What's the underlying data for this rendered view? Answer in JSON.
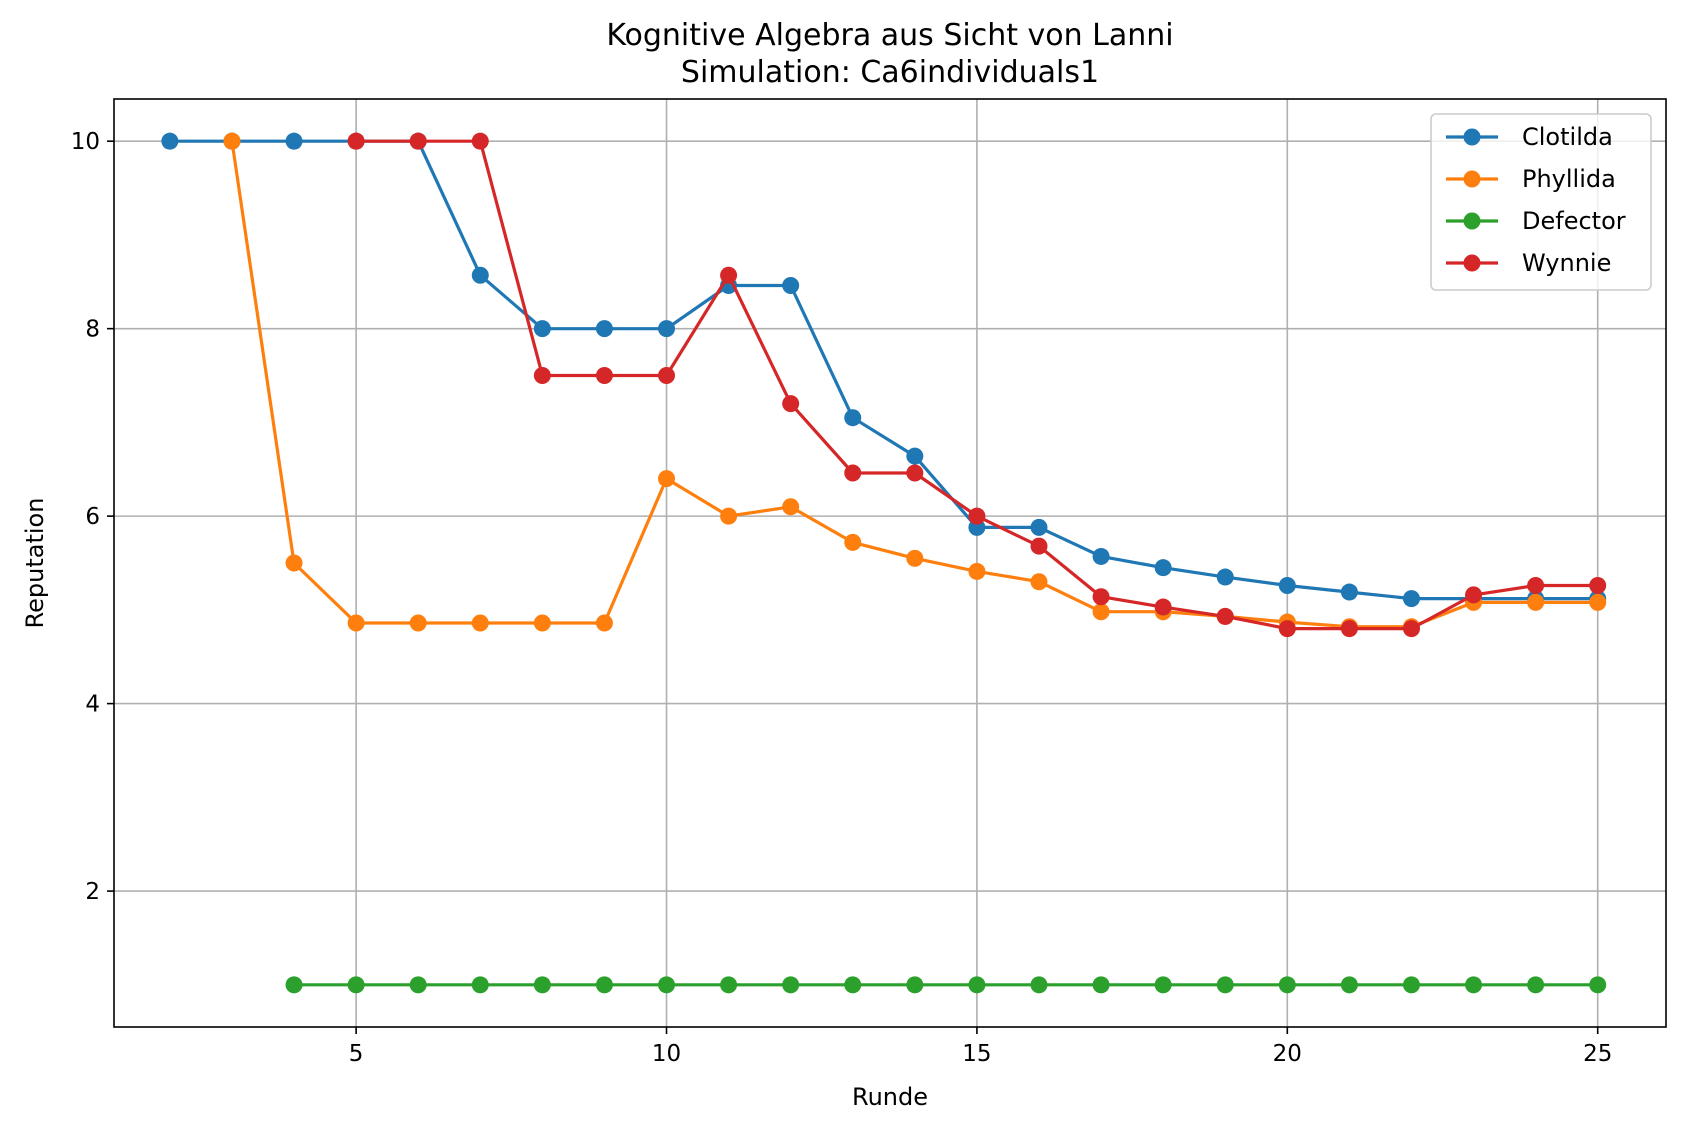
{
  "chart_data": {
    "type": "line",
    "title": "Kognitive Algebra aus Sicht von Lanni",
    "subtitle": "Simulation: Ca6individuals1",
    "xlabel": "Runde",
    "ylabel": "Reputation",
    "xlim": [
      1.1,
      26.1
    ],
    "ylim": [
      0.55,
      10.45
    ],
    "xticks": [
      5,
      10,
      15,
      20,
      25
    ],
    "yticks": [
      2,
      4,
      6,
      8,
      10
    ],
    "grid": true,
    "legend": "top-right",
    "series": [
      {
        "name": "Clotilda",
        "color": "#1f77b4",
        "x": [
          2,
          3,
          4,
          5,
          6,
          7,
          8,
          9,
          10,
          11,
          12,
          13,
          14,
          15,
          16,
          17,
          18,
          19,
          20,
          21,
          22,
          23,
          24,
          25
        ],
        "y": [
          10,
          10,
          10,
          10,
          10,
          8.57,
          8.0,
          8.0,
          8.0,
          8.46,
          8.46,
          7.05,
          6.64,
          5.88,
          5.88,
          5.57,
          5.45,
          5.35,
          5.26,
          5.19,
          5.12,
          5.12,
          5.12,
          5.12
        ]
      },
      {
        "name": "Phyllida",
        "color": "#ff7f0e",
        "x": [
          3,
          4,
          5,
          6,
          7,
          8,
          9,
          10,
          11,
          12,
          13,
          14,
          15,
          16,
          17,
          18,
          19,
          20,
          21,
          22,
          23,
          24,
          25
        ],
        "y": [
          10,
          5.5,
          4.86,
          4.86,
          4.86,
          4.86,
          4.86,
          6.4,
          6.0,
          6.1,
          5.72,
          5.55,
          5.41,
          5.3,
          4.98,
          4.98,
          4.93,
          4.87,
          4.82,
          4.82,
          5.08,
          5.08,
          5.08
        ]
      },
      {
        "name": "Defector",
        "color": "#2ca02c",
        "x": [
          4,
          5,
          6,
          7,
          8,
          9,
          10,
          11,
          12,
          13,
          14,
          15,
          16,
          17,
          18,
          19,
          20,
          21,
          22,
          23,
          24,
          25
        ],
        "y": [
          1,
          1,
          1,
          1,
          1,
          1,
          1,
          1,
          1,
          1,
          1,
          1,
          1,
          1,
          1,
          1,
          1,
          1,
          1,
          1,
          1,
          1
        ]
      },
      {
        "name": "Wynnie",
        "color": "#d62728",
        "x": [
          5,
          6,
          7,
          8,
          9,
          10,
          11,
          12,
          13,
          14,
          15,
          16,
          17,
          18,
          19,
          20,
          21,
          22,
          23,
          24,
          25
        ],
        "y": [
          10,
          10,
          10,
          7.5,
          7.5,
          7.5,
          8.57,
          7.2,
          6.46,
          6.46,
          6.0,
          5.68,
          5.14,
          5.03,
          4.93,
          4.8,
          4.8,
          4.8,
          5.16,
          5.26,
          5.26
        ]
      }
    ]
  }
}
